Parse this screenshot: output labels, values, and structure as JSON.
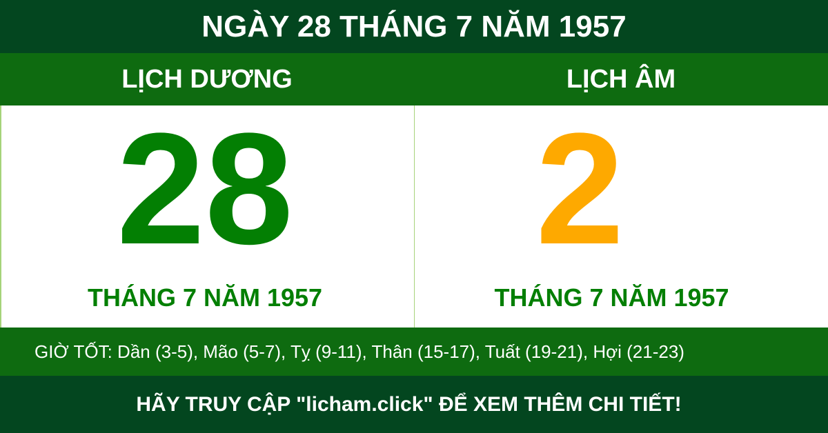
{
  "title": "NGÀY 28 THÁNG 7 NĂM 1957",
  "solar": {
    "label": "LỊCH DƯƠNG",
    "day": "28",
    "month_year": "THÁNG 7 NĂM 1957"
  },
  "lunar": {
    "label": "LỊCH ÂM",
    "day": "2",
    "month_year": "THÁNG 7 NĂM 1957"
  },
  "good_hours": "GIỜ TỐT: Dần (3-5), Mão (5-7), Tỵ (9-11), Thân (15-17), Tuất (19-21), Hợi (21-23)",
  "footer": "HÃY TRUY CẬP \"licham.click\" ĐỂ XEM THÊM CHI TIẾT!",
  "colors": {
    "dark_green": "#03461f",
    "green": "#0e6b10",
    "solar_number": "#037f03",
    "lunar_number": "#fea900"
  }
}
